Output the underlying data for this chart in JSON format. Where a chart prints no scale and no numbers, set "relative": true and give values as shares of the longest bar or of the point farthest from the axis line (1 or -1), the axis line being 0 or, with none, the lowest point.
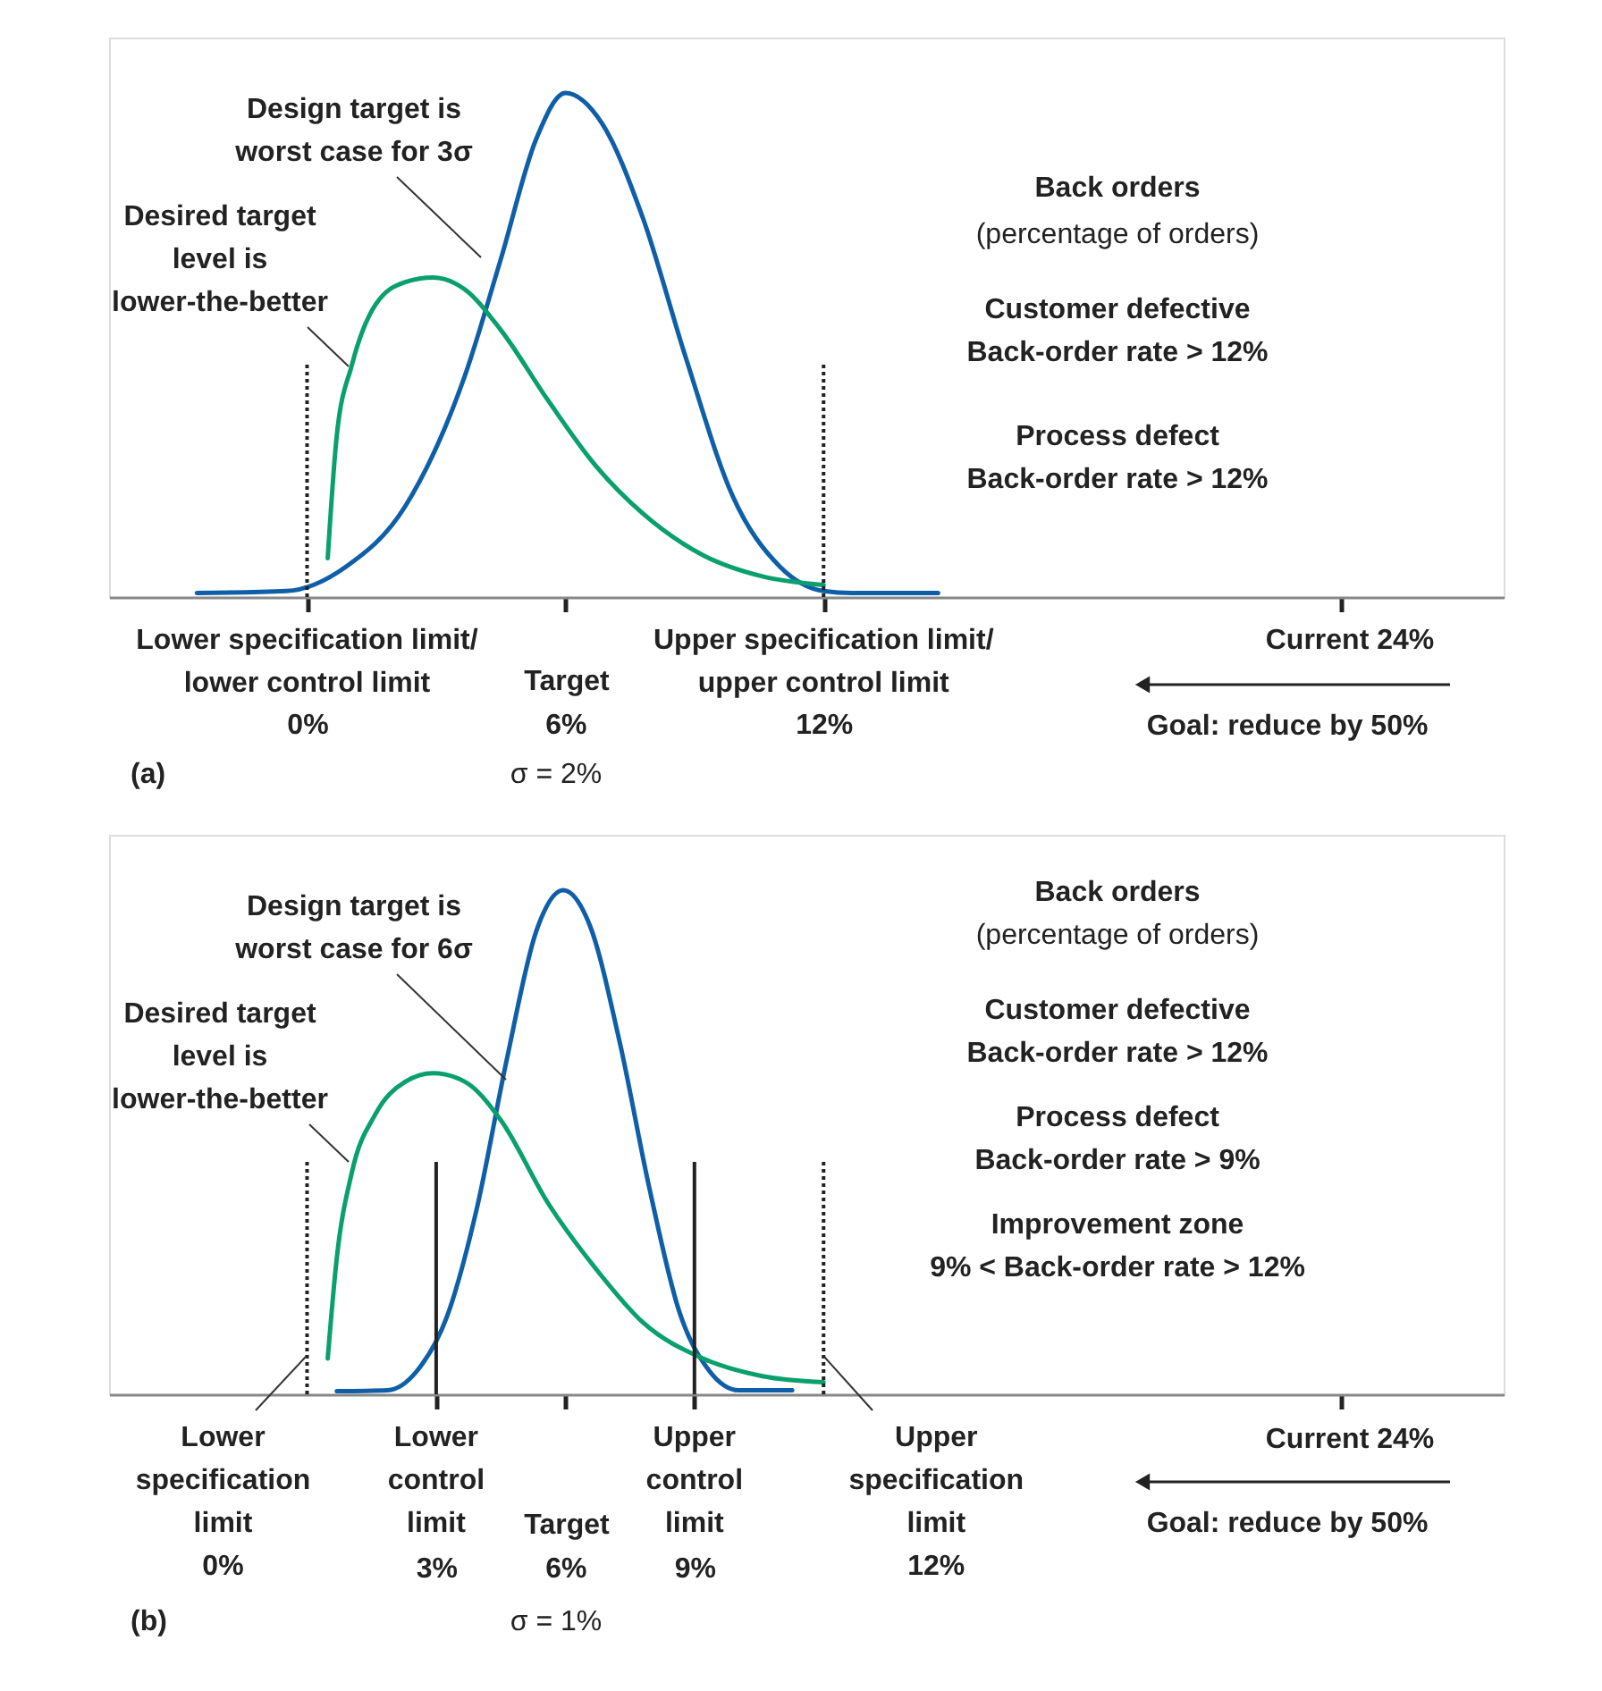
{
  "chart_data": [
    {
      "type": "line",
      "relative": true,
      "xlim": [
        -4.6,
        27.8
      ],
      "xticks": [
        {
          "value": 0,
          "label": "0%"
        },
        {
          "value": 6,
          "label": "6%"
        },
        {
          "value": 12,
          "label": "12%"
        },
        {
          "value": 24,
          "label": null
        }
      ],
      "series": [
        {
          "color": "#0f5fa8",
          "x": [
            -2.56,
            -0.48,
            0.9,
            2.28,
            3.67,
            4.5,
            5.33,
            6,
            6.85,
            7.81,
            8.78,
            9.89,
            10.99,
            12,
            12.66,
            14.66
          ],
          "values": [
            0.008,
            0.012,
            0.06,
            0.18,
            0.44,
            0.67,
            0.91,
            1,
            0.94,
            0.75,
            0.48,
            0.2,
            0.06,
            0.012,
            0.008,
            0.008
          ]
        },
        {
          "color": "#0aa06e",
          "x": [
            0.48,
            0.69,
            1.04,
            1.59,
            2.28,
            2.93,
            3.67,
            4.5,
            5.6,
            6.71,
            7.81,
            9.2,
            10.58,
            12
          ],
          "values": [
            0.077,
            0.32,
            0.46,
            0.58,
            0.625,
            0.634,
            0.61,
            0.53,
            0.39,
            0.26,
            0.165,
            0.083,
            0.041,
            0.024
          ]
        }
      ],
      "ref_lines": [
        {
          "axis": "x",
          "value": 0,
          "line_style": "dotted",
          "color": "#222222",
          "label": "Lower specification limit/\nlower control limit"
        },
        {
          "axis": "x",
          "value": 12,
          "line_style": "dotted",
          "color": "#222222",
          "label": "Upper specification limit/\nupper control limit"
        }
      ],
      "annotations": [
        "Design target is\nworst case for 3σ",
        "Desired target\nlevel is\nlower-the-better",
        "Back orders",
        "(percentage of orders)",
        "Customer defective\nBack-order rate > 12%",
        "Process defect\nBack-order rate > 12%",
        "Goal: reduce by 50%",
        "(a)",
        "σ = 2%",
        "Target",
        "Current 24%"
      ]
    },
    {
      "type": "line",
      "relative": true,
      "xlim": [
        -4.6,
        27.8
      ],
      "xticks": [
        {
          "value": 3,
          "label": "3%"
        },
        {
          "value": 6,
          "label": "6%"
        },
        {
          "value": 9,
          "label": "9%"
        },
        {
          "value": 24,
          "label": null
        }
      ],
      "series": [
        {
          "color": "#0f5fa8",
          "x": [
            0.69,
            1.87,
            2.56,
            3.25,
            3.94,
            4.63,
            5.33,
            5.95,
            6.57,
            7.26,
            7.95,
            8.64,
            9.34,
            10.03,
            11.27
          ],
          "values": [
            0.006,
            0.008,
            0.047,
            0.154,
            0.367,
            0.66,
            0.92,
            1,
            0.93,
            0.7,
            0.41,
            0.166,
            0.047,
            0.008,
            0.008
          ]
        },
        {
          "color": "#0aa06e",
          "x": [
            0.48,
            0.69,
            1.04,
            1.59,
            2.28,
            2.93,
            3.67,
            4.5,
            5.6,
            6.71,
            7.81,
            9.2,
            10.58,
            12
          ],
          "values": [
            0.071,
            0.27,
            0.44,
            0.556,
            0.62,
            0.637,
            0.62,
            0.544,
            0.379,
            0.249,
            0.142,
            0.071,
            0.036,
            0.024
          ]
        }
      ],
      "ref_lines": [
        {
          "axis": "x",
          "value": 0,
          "line_style": "dotted",
          "color": "#222222",
          "label": "Lower\nspecification\nlimit\n0%"
        },
        {
          "axis": "x",
          "value": 12,
          "line_style": "dotted",
          "color": "#222222",
          "label": "Upper\nspecification\nlimit\n12%"
        },
        {
          "axis": "x",
          "value": 3,
          "line_style": "solid",
          "color": "#222222",
          "label": "Lower\ncontrol\nlimit"
        },
        {
          "axis": "x",
          "value": 9,
          "line_style": "solid",
          "color": "#222222",
          "label": "Upper\ncontrol\nlimit"
        }
      ],
      "annotations": [
        "Design target is\nworst case for 6σ",
        "Desired target\nlevel is\nlower-the-better",
        "Back orders",
        "(percentage of orders)",
        "Customer defective\nBack-order rate > 12%",
        "Process defect\nBack-order rate > 9%",
        "Improvement zone\n9% < Back-order rate > 12%",
        "Goal: reduce by 50%",
        "(b)",
        "σ = 1%",
        "Target",
        "Current 24%"
      ]
    }
  ]
}
